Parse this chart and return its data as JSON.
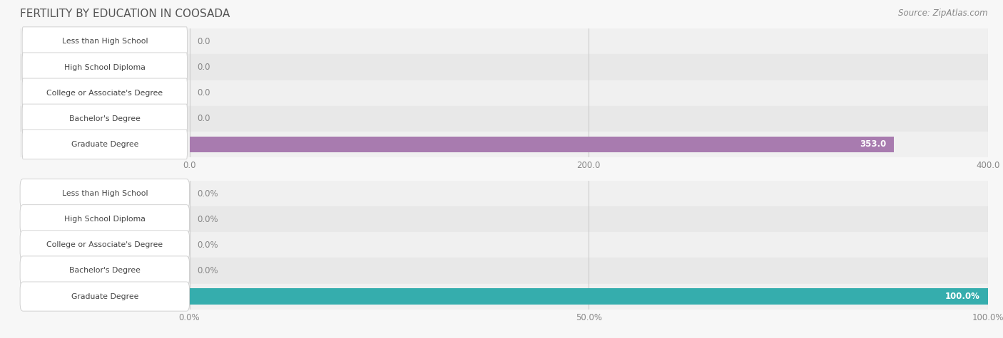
{
  "title": "FERTILITY BY EDUCATION IN COOSADA",
  "source": "Source: ZipAtlas.com",
  "categories": [
    "Less than High School",
    "High School Diploma",
    "College or Associate's Degree",
    "Bachelor's Degree",
    "Graduate Degree"
  ],
  "values_abs": [
    0.0,
    0.0,
    0.0,
    0.0,
    353.0
  ],
  "values_pct": [
    0.0,
    0.0,
    0.0,
    0.0,
    100.0
  ],
  "abs_max": 400.0,
  "pct_max": 100.0,
  "bar_color_purple_light": "#cfa8d0",
  "bar_color_purple_dark": "#a87baf",
  "bar_color_teal_light": "#5bc8c8",
  "bar_color_teal_dark": "#35adad",
  "label_bg": "#ffffff",
  "label_border": "#cccccc",
  "row_bg_even": "#f0f0f0",
  "row_bg_odd": "#e8e8e8",
  "title_color": "#555555",
  "value_label_color_inside": "#ffffff",
  "value_label_color_outside": "#888888",
  "axis_color": "#cccccc",
  "tick_label_color": "#888888",
  "fig_bg": "#f7f7f7"
}
